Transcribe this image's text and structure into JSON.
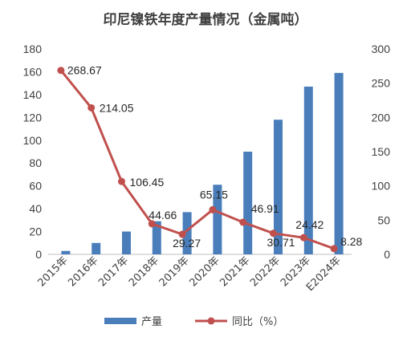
{
  "chart_data": {
    "type": "bar+line",
    "title": "印尼镍铁年度产量情况（金属吨）",
    "categories": [
      "2015年",
      "2016年",
      "2017年",
      "2018年",
      "2019年",
      "2020年",
      "2021年",
      "2022年",
      "2023年",
      "E2024年"
    ],
    "series": [
      {
        "name": "产量",
        "type": "bar",
        "axis": "left",
        "color": "#4a7ebb",
        "values": [
          3,
          10,
          20,
          29,
          37,
          61,
          90,
          118,
          147,
          159
        ]
      },
      {
        "name": "同比（%）",
        "type": "line",
        "axis": "right",
        "color": "#c0504d",
        "values": [
          268.67,
          214.05,
          106.45,
          44.66,
          29.27,
          65.15,
          46.91,
          30.71,
          24.42,
          8.28
        ],
        "labels": [
          "268.67",
          "214.05",
          "106.45",
          "44.66",
          "29.27",
          "65.15",
          "46.91",
          "30.71",
          "24.42",
          "8.28"
        ]
      }
    ],
    "y_left": {
      "min": 0,
      "max": 180,
      "ticks": [
        "0",
        "20",
        "40",
        "60",
        "80",
        "100",
        "120",
        "140",
        "160",
        "180"
      ]
    },
    "y_right": {
      "min": 0,
      "max": 300,
      "ticks": [
        "0",
        "50",
        "100",
        "150",
        "200",
        "250",
        "300"
      ]
    },
    "grid": false,
    "legend_position": "bottom"
  }
}
